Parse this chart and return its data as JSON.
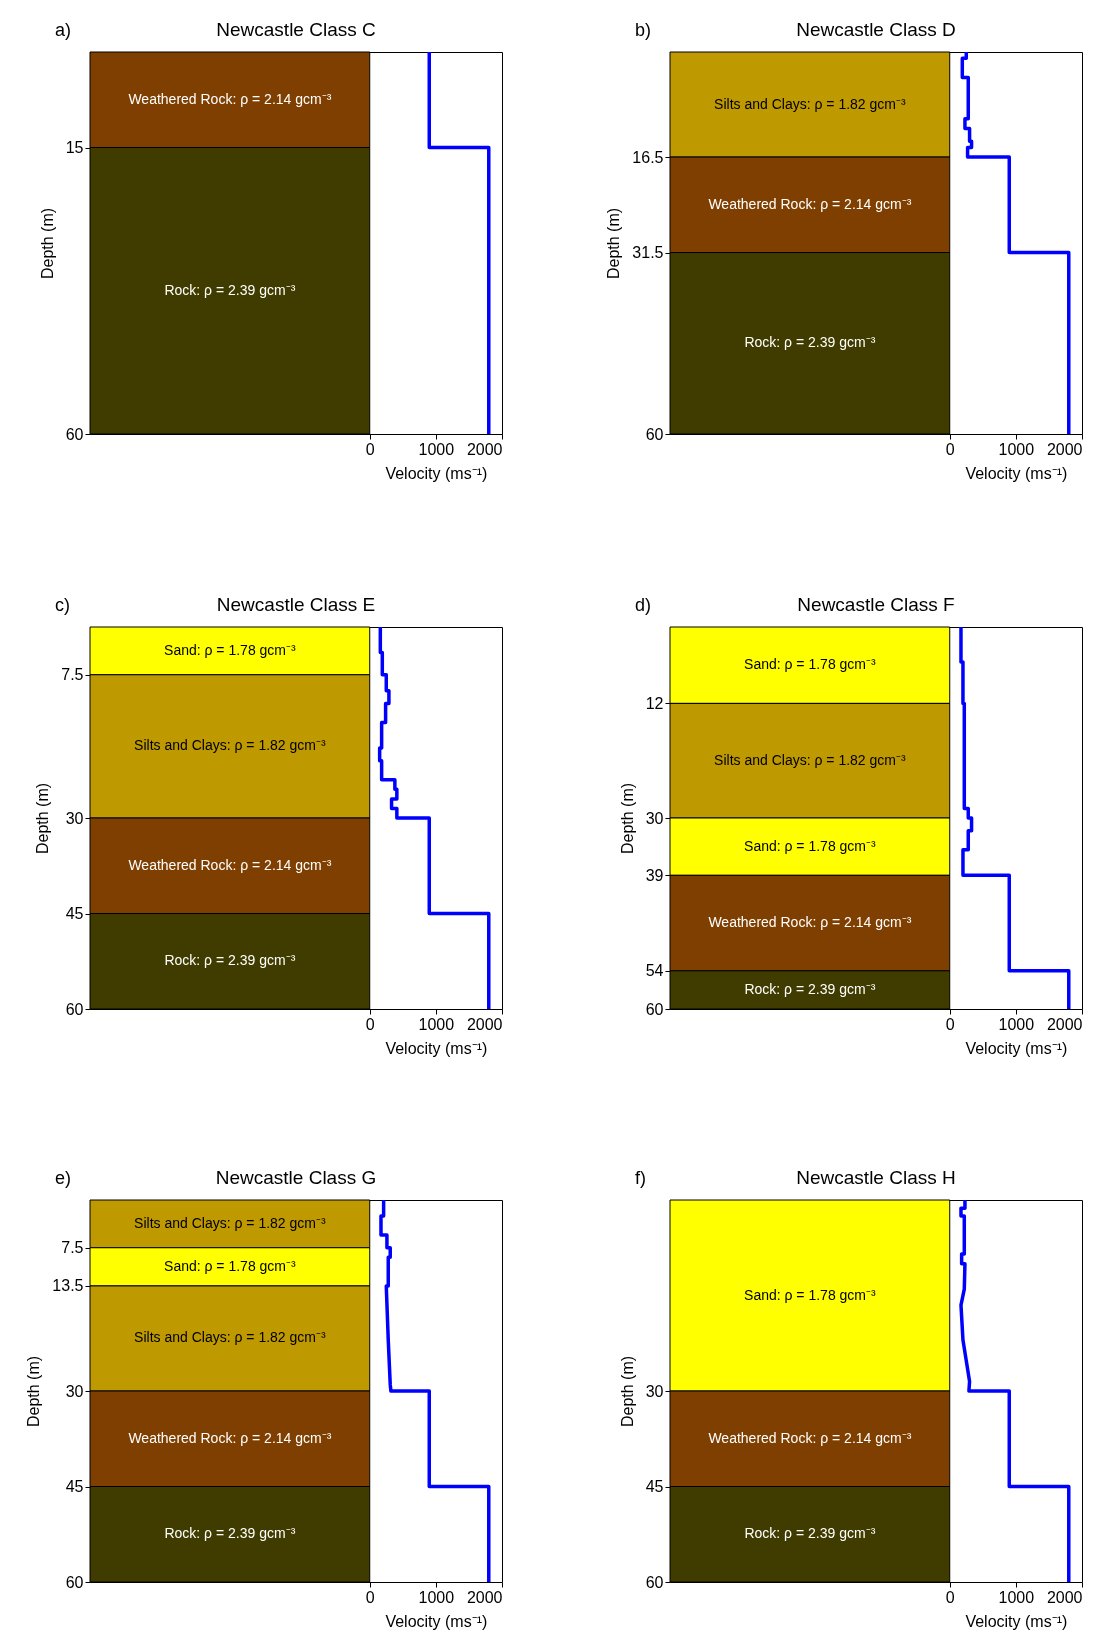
{
  "chart_data": [
    {
      "type": "line",
      "title": "Newcastle Class C",
      "annotations": [
        "a)"
      ],
      "xlabel": "Velocity (ms⁻¹)",
      "ylabel": "Depth (m)",
      "xlim": [
        -4230,
        2000
      ],
      "xticks": [
        0,
        1000,
        2000
      ],
      "ylim": [
        60,
        0
      ],
      "yticks": [
        15,
        60
      ],
      "grid": false,
      "bands": [
        {
          "axis": "y",
          "from": 0,
          "to": 15,
          "label": "Weathered Rock: ρ = 2.14 gcm⁻³",
          "color": "#7f3f00"
        },
        {
          "axis": "y",
          "from": 15,
          "to": 60,
          "label": "Rock: ρ = 2.39 gcm⁻³",
          "color": "#403c00"
        }
      ],
      "series": [
        {
          "color": "#0000ff",
          "x": [
            900,
            900,
            1800,
            1800
          ],
          "values": [
            0,
            15,
            15,
            60
          ]
        }
      ]
    },
    {
      "type": "line",
      "title": "Newcastle Class D",
      "annotations": [
        "b)"
      ],
      "xlabel": "Velocity (ms⁻¹)",
      "ylabel": "Depth (m)",
      "xlim": [
        -4230,
        2000
      ],
      "xticks": [
        0,
        1000,
        2000
      ],
      "ylim": [
        60,
        0
      ],
      "yticks": [
        16.5,
        31.5,
        60
      ],
      "grid": false,
      "bands": [
        {
          "axis": "y",
          "from": 0,
          "to": 16.5,
          "label": "Silts and Clays: ρ = 1.82 gcm⁻³",
          "color": "#bf9900"
        },
        {
          "axis": "y",
          "from": 16.5,
          "to": 31.5,
          "label": "Weathered Rock: ρ = 2.14 gcm⁻³",
          "color": "#7f3f00"
        },
        {
          "axis": "y",
          "from": 31.5,
          "to": 60,
          "label": "Rock: ρ = 2.39 gcm⁻³",
          "color": "#403c00"
        }
      ],
      "series": [
        {
          "color": "#0000ff",
          "x": [
            250,
            250,
            190,
            190,
            280,
            280,
            230,
            230,
            300,
            300,
            330,
            330,
            270,
            270,
            900,
            900,
            1800,
            1800
          ],
          "values": [
            0,
            1,
            1,
            4,
            4,
            10.5,
            10.5,
            12,
            12,
            14,
            14,
            15,
            15,
            16.5,
            16.5,
            31.5,
            31.5,
            60
          ]
        }
      ]
    },
    {
      "type": "line",
      "title": "Newcastle Class E",
      "annotations": [
        "c)"
      ],
      "xlabel": "Velocity (ms⁻¹)",
      "ylabel": "Depth (m)",
      "xlim": [
        -4230,
        2000
      ],
      "xticks": [
        0,
        1000,
        2000
      ],
      "ylim": [
        60,
        0
      ],
      "yticks": [
        7.5,
        30,
        45,
        60
      ],
      "grid": false,
      "bands": [
        {
          "axis": "y",
          "from": 0,
          "to": 7.5,
          "label": "Sand: ρ = 1.78 gcm⁻³",
          "color": "#ffff00"
        },
        {
          "axis": "y",
          "from": 7.5,
          "to": 30,
          "label": "Silts and Clays: ρ = 1.82 gcm⁻³",
          "color": "#bf9900"
        },
        {
          "axis": "y",
          "from": 30,
          "to": 45,
          "label": "Weathered Rock: ρ = 2.14 gcm⁻³",
          "color": "#7f3f00"
        },
        {
          "axis": "y",
          "from": 45,
          "to": 60,
          "label": "Rock: ρ = 2.39 gcm⁻³",
          "color": "#403c00"
        }
      ],
      "series": [
        {
          "color": "#0000ff",
          "x": [
            160,
            160,
            190,
            190,
            250,
            250,
            290,
            290,
            240,
            240,
            180,
            180,
            150,
            150,
            180,
            180,
            380,
            380,
            410,
            410,
            330,
            330,
            410,
            410,
            900,
            900,
            1800,
            1800
          ],
          "values": [
            0,
            4,
            4,
            7.5,
            7.5,
            10,
            10,
            12,
            12,
            15,
            15,
            19,
            19,
            21,
            21,
            24,
            24,
            25.5,
            25.5,
            27,
            27,
            28.5,
            28.5,
            30,
            30,
            45,
            45,
            60
          ]
        }
      ]
    },
    {
      "type": "line",
      "title": "Newcastle Class F",
      "annotations": [
        "d)"
      ],
      "xlabel": "Velocity (ms⁻¹)",
      "ylabel": "Depth (m)",
      "xlim": [
        -4230,
        2000
      ],
      "xticks": [
        0,
        1000,
        2000
      ],
      "ylim": [
        60,
        0
      ],
      "yticks": [
        12,
        30,
        39,
        54,
        60
      ],
      "grid": false,
      "bands": [
        {
          "axis": "y",
          "from": 0,
          "to": 12,
          "label": "Sand: ρ = 1.78 gcm⁻³",
          "color": "#ffff00"
        },
        {
          "axis": "y",
          "from": 12,
          "to": 30,
          "label": "Silts and Clays: ρ = 1.82 gcm⁻³",
          "color": "#bf9900"
        },
        {
          "axis": "y",
          "from": 30,
          "to": 39,
          "label": "Sand: ρ = 1.78 gcm⁻³",
          "color": "#ffff00"
        },
        {
          "axis": "y",
          "from": 39,
          "to": 54,
          "label": "Weathered Rock: ρ = 2.14 gcm⁻³",
          "color": "#7f3f00"
        },
        {
          "axis": "y",
          "from": 54,
          "to": 60,
          "label": "Rock: ρ = 2.39 gcm⁻³",
          "color": "#403c00"
        }
      ],
      "series": [
        {
          "color": "#0000ff",
          "x": [
            170,
            170,
            200,
            200,
            220,
            220,
            280,
            280,
            330,
            330,
            280,
            280,
            200,
            200,
            900,
            900,
            1800,
            1800
          ],
          "values": [
            0,
            5.5,
            5.5,
            12,
            12,
            28.5,
            28.5,
            30,
            30,
            32,
            32,
            35,
            35,
            39,
            39,
            54,
            54,
            60
          ]
        }
      ]
    },
    {
      "type": "line",
      "title": "Newcastle Class G",
      "annotations": [
        "e)"
      ],
      "xlabel": "Velocity (ms⁻¹)",
      "ylabel": "Depth (m)",
      "xlim": [
        -4230,
        2000
      ],
      "xticks": [
        0,
        1000,
        2000
      ],
      "ylim": [
        60,
        0
      ],
      "yticks": [
        7.5,
        13.5,
        30,
        45,
        60
      ],
      "grid": false,
      "bands": [
        {
          "axis": "y",
          "from": 0,
          "to": 7.5,
          "label": "Silts and Clays: ρ = 1.82 gcm⁻³",
          "color": "#bf9900"
        },
        {
          "axis": "y",
          "from": 7.5,
          "to": 13.5,
          "label": "Sand: ρ = 1.78 gcm⁻³",
          "color": "#ffff00"
        },
        {
          "axis": "y",
          "from": 13.5,
          "to": 30,
          "label": "Silts and Clays: ρ = 1.82 gcm⁻³",
          "color": "#bf9900"
        },
        {
          "axis": "y",
          "from": 30,
          "to": 45,
          "label": "Weathered Rock: ρ = 2.14 gcm⁻³",
          "color": "#7f3f00"
        },
        {
          "axis": "y",
          "from": 45,
          "to": 60,
          "label": "Rock: ρ = 2.39 gcm⁻³",
          "color": "#403c00"
        }
      ],
      "series": [
        {
          "color": "#0000ff",
          "x": [
            210,
            210,
            170,
            170,
            260,
            260,
            310,
            310,
            280,
            280,
            250,
            280,
            310,
            320,
            900,
            900,
            1800,
            1800
          ],
          "values": [
            0,
            2.5,
            2.5,
            5.5,
            5.5,
            7.5,
            7.5,
            9,
            9,
            13.5,
            13.5,
            22,
            29,
            30,
            30,
            45,
            45,
            60
          ]
        }
      ]
    },
    {
      "type": "line",
      "title": "Newcastle Class H",
      "annotations": [
        "f)"
      ],
      "xlabel": "Velocity (ms⁻¹)",
      "ylabel": "Depth (m)",
      "xlim": [
        -4230,
        2000
      ],
      "xticks": [
        0,
        1000,
        2000
      ],
      "ylim": [
        60,
        0
      ],
      "yticks": [
        30,
        45,
        60
      ],
      "grid": false,
      "bands": [
        {
          "axis": "y",
          "from": 0,
          "to": 30,
          "label": "Sand: ρ = 1.78 gcm⁻³",
          "color": "#ffff00"
        },
        {
          "axis": "y",
          "from": 30,
          "to": 45,
          "label": "Weathered Rock: ρ = 2.14 gcm⁻³",
          "color": "#7f3f00"
        },
        {
          "axis": "y",
          "from": 45,
          "to": 60,
          "label": "Rock: ρ = 2.39 gcm⁻³",
          "color": "#403c00"
        }
      ],
      "series": [
        {
          "color": "#0000ff",
          "x": [
            230,
            230,
            170,
            170,
            220,
            220,
            180,
            180,
            230,
            220,
            170,
            200,
            300,
            290,
            900,
            900,
            1800,
            1800
          ],
          "values": [
            0,
            1.3,
            1.3,
            2.5,
            2.5,
            8.5,
            8.5,
            10,
            10,
            14,
            16.5,
            22,
            28.5,
            30,
            30,
            45,
            45,
            60
          ]
        }
      ]
    }
  ]
}
